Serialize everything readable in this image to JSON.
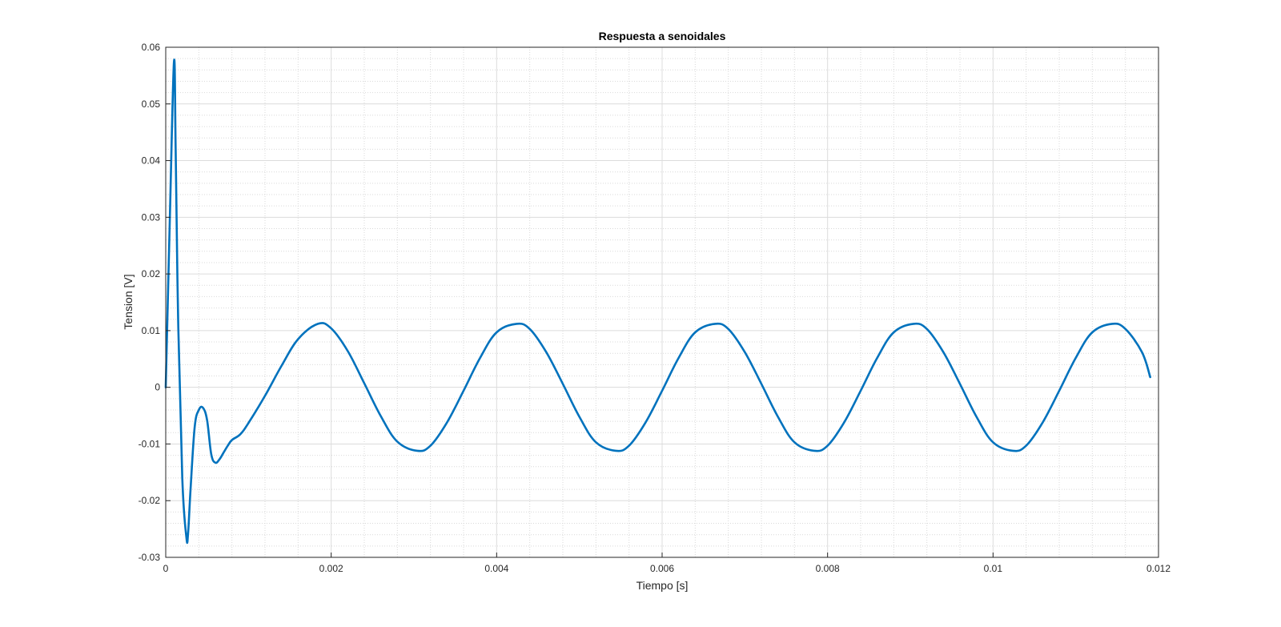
{
  "chart_data": {
    "type": "line",
    "title": "Respuesta a senoidales",
    "xlabel": "Tiempo [s]",
    "ylabel": "Tension [V]",
    "xlim": [
      0,
      0.012
    ],
    "ylim": [
      -0.03,
      0.06
    ],
    "xticks": [
      0,
      0.002,
      0.004,
      0.006,
      0.008,
      0.01,
      0.012
    ],
    "xtick_labels": [
      "0",
      "0.002",
      "0.004",
      "0.006",
      "0.008",
      "0.01",
      "0.012"
    ],
    "yticks": [
      -0.03,
      -0.02,
      -0.01,
      0,
      0.01,
      0.02,
      0.03,
      0.04,
      0.05,
      0.06
    ],
    "ytick_labels": [
      "-0.03",
      "-0.02",
      "-0.01",
      "0",
      "0.01",
      "0.02",
      "0.03",
      "0.04",
      "0.05",
      "0.06"
    ],
    "grid": true,
    "minor_grid": true,
    "line_color": "#0072BD",
    "series": [
      {
        "x": [
          0,
          5e-05,
          0.0001,
          0.00012,
          0.00015,
          0.0002,
          0.00025,
          0.00027,
          0.0003,
          0.00035,
          0.0004,
          0.00045,
          0.0005,
          0.00055,
          0.0006,
          0.00065,
          0.0007,
          0.00075,
          0.0008,
          0.0009,
          0.001,
          0.0012,
          0.0014,
          0.0016,
          0.00184,
          0.002,
          0.0022,
          0.0024,
          0.0026,
          0.0028,
          0.00304,
          0.0032,
          0.0034,
          0.0036,
          0.0038,
          0.004,
          0.00424,
          0.0044,
          0.0046,
          0.0048,
          0.005,
          0.0052,
          0.00544,
          0.0056,
          0.0058,
          0.006,
          0.0062,
          0.0064,
          0.00664,
          0.0068,
          0.007,
          0.0072,
          0.0074,
          0.0076,
          0.00784,
          0.008,
          0.0082,
          0.0084,
          0.0086,
          0.0088,
          0.00904,
          0.0092,
          0.0094,
          0.0096,
          0.0098,
          0.01,
          0.01024,
          0.0104,
          0.0106,
          0.0108,
          0.011,
          0.0112,
          0.01144,
          0.0116,
          0.0118,
          0.0119
        ],
        "y": [
          0,
          0.03,
          0.0575,
          0.042,
          0.012,
          -0.016,
          -0.0265,
          -0.0258,
          -0.018,
          -0.007,
          -0.004,
          -0.0036,
          -0.0058,
          -0.0118,
          -0.0133,
          -0.0127,
          -0.0115,
          -0.0103,
          -0.0093,
          -0.0083,
          -0.0063,
          -0.0015,
          0.0038,
          0.0085,
          0.0112,
          0.0104,
          0.0064,
          0.0007,
          -0.0051,
          -0.0096,
          -0.0112,
          -0.0103,
          -0.0062,
          -0.0006,
          0.0052,
          0.0097,
          0.0112,
          0.0103,
          0.0062,
          0.0006,
          -0.0052,
          -0.0097,
          -0.0112,
          -0.0103,
          -0.0062,
          -0.0006,
          0.0052,
          0.0097,
          0.0112,
          0.0103,
          0.0062,
          0.0006,
          -0.0052,
          -0.0097,
          -0.0112,
          -0.0103,
          -0.0062,
          -0.0006,
          0.0052,
          0.0097,
          0.0112,
          0.0103,
          0.0062,
          0.0006,
          -0.0052,
          -0.0097,
          -0.0112,
          -0.0103,
          -0.0062,
          -0.0006,
          0.0052,
          0.0097,
          0.0112,
          0.0103,
          0.0062,
          0.0018
        ]
      }
    ]
  }
}
